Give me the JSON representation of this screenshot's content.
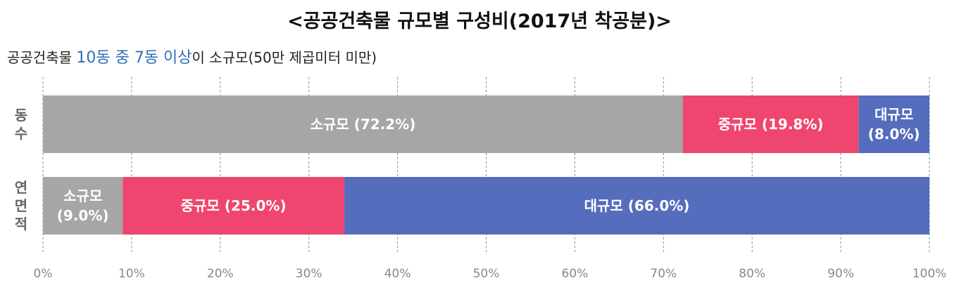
{
  "header": {
    "title": "<공공건축물 규모별 구성비(2017년 착공분)>",
    "subtitle_pre": "공공건축물 ",
    "subtitle_highlight": "10동 중 7동 이상",
    "subtitle_post": "이 소규모(50만 제곱미터 미만)"
  },
  "colors": {
    "small": "#a7a5a6",
    "medium": "#ef466f",
    "large": "#566cbc",
    "highlight": "#2e6fb5",
    "grid": "#6d8fc4"
  },
  "chart_data": {
    "type": "bar",
    "orientation": "horizontal",
    "stacked": true,
    "categories": [
      "동수",
      "연면적"
    ],
    "xlim": [
      0,
      100
    ],
    "xticks": [
      "0%",
      "10%",
      "20%",
      "30%",
      "40%",
      "50%",
      "60%",
      "70%",
      "80%",
      "90%",
      "100%"
    ],
    "grid": "vertical-dashed",
    "series": [
      {
        "name": "소규모",
        "values": [
          72.2,
          9.0
        ],
        "labels": [
          "소규모 (72.2%)",
          "소규모|(9.0%)"
        ]
      },
      {
        "name": "중규모",
        "values": [
          19.8,
          25.0
        ],
        "labels": [
          "중규모 (19.8%)",
          "중규모 (25.0%)"
        ]
      },
      {
        "name": "대규모",
        "values": [
          8.0,
          66.0
        ],
        "labels": [
          "대규모|(8.0%)",
          "대규모 (66.0%)"
        ]
      }
    ]
  }
}
